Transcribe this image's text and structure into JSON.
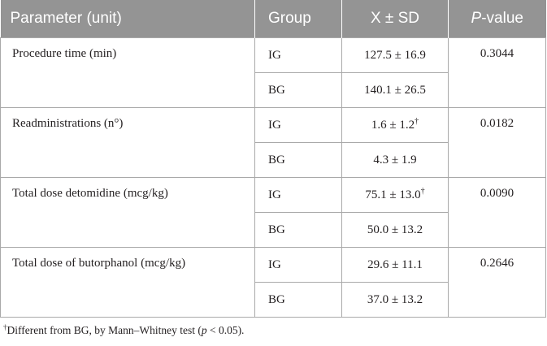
{
  "table": {
    "headers": {
      "parameter": "Parameter (unit)",
      "group": "Group",
      "xsd": "X ± SD",
      "p_italic": "P",
      "p_rest": "-value"
    },
    "rows": [
      {
        "parameter": "Procedure time (min)",
        "p_value": "0.3044",
        "groups": [
          {
            "group": "IG",
            "value": "127.5 ± 16.9",
            "mark": ""
          },
          {
            "group": "BG",
            "value": "140.1 ± 26.5",
            "mark": ""
          }
        ]
      },
      {
        "parameter": "Readministrations (n°)",
        "p_value": "0.0182",
        "groups": [
          {
            "group": "IG",
            "value": "1.6 ± 1.2",
            "mark": "†"
          },
          {
            "group": "BG",
            "value": "4.3 ± 1.9",
            "mark": ""
          }
        ]
      },
      {
        "parameter": "Total dose detomidine (mcg/kg)",
        "p_value": "0.0090",
        "groups": [
          {
            "group": "IG",
            "value": "75.1 ± 13.0",
            "mark": "†"
          },
          {
            "group": "BG",
            "value": "50.0 ± 13.2",
            "mark": ""
          }
        ]
      },
      {
        "parameter": "Total dose of butorphanol (mcg/kg)",
        "p_value": "0.2646",
        "groups": [
          {
            "group": "IG",
            "value": "29.6 ± 11.1",
            "mark": ""
          },
          {
            "group": "BG",
            "value": "37.0 ± 13.2",
            "mark": ""
          }
        ]
      }
    ]
  },
  "footnote": {
    "mark": "†",
    "text_before": "Different from BG, by Mann–Whitney test (",
    "p_italic": "p",
    "text_after": " < 0.05)."
  },
  "colors": {
    "header_background": "#949494",
    "header_text": "#ffffff",
    "grid_lines": "#a9a9a9",
    "body_text": "#231f20"
  }
}
